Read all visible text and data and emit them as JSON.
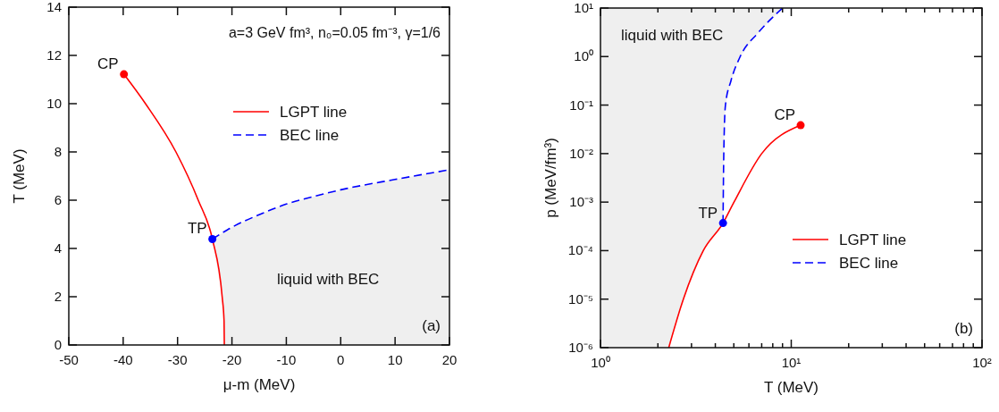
{
  "chart_data": [
    {
      "type": "line",
      "xlabel": "μ-m (MeV)",
      "ylabel": "T (MeV)",
      "xlim": [
        -50,
        20
      ],
      "ylim": [
        0,
        14
      ],
      "xticks": [
        -50,
        -40,
        -30,
        -20,
        -10,
        0,
        10,
        20
      ],
      "yticks": [
        0,
        2,
        4,
        6,
        8,
        10,
        12,
        14
      ],
      "grid": false,
      "legend": "top right",
      "series": [
        {
          "name": "LGPT line",
          "color": "#ff0000",
          "line_style": "solid",
          "marker": "none",
          "x": [
            -39.86,
            -35.9,
            -30.3,
            -26.2,
            -23.6,
            -21.8,
            -21.45,
            -21.4
          ],
          "values": [
            11.22,
            10,
            8,
            6,
            4.39,
            2,
            1,
            0
          ]
        },
        {
          "name": "BEC line",
          "color": "#0000ff",
          "line_style": "dashed",
          "marker": "none",
          "x": [
            -23.6,
            -20,
            -15,
            -10,
            -5,
            0,
            10,
            20
          ],
          "values": [
            4.39,
            4.88,
            5.4,
            5.84,
            6.15,
            6.43,
            6.86,
            7.26
          ]
        },
        {
          "type": "scatter",
          "marker": "circle",
          "x": [
            -39.86,
            -23.6
          ],
          "values": [
            11.22,
            4.39
          ],
          "colors": [
            "#ff0000",
            "#0000ff"
          ]
        }
      ],
      "annotations": [
        "a=3 GeV fm³, n₀=0.05 fm⁻³, γ=1/6",
        {
          "text": "CP",
          "x": -39.86,
          "y": 11.22
        },
        {
          "text": "TP",
          "x": -23.6,
          "y": 4.39
        },
        "liquid with BEC",
        "(a)"
      ]
    },
    {
      "type": "line",
      "xlabel": "T (MeV)",
      "ylabel": "p (MeV/fm³)",
      "log": "xy",
      "xlim": [
        1,
        100
      ],
      "ylim": [
        1e-06,
        10
      ],
      "xticks": [
        {
          "value": 1,
          "label": "10⁰"
        },
        {
          "value": 2,
          "label": null
        },
        {
          "value": 3,
          "label": null
        },
        {
          "value": 4,
          "label": null
        },
        {
          "value": 5,
          "label": null
        },
        {
          "value": 6,
          "label": null
        },
        {
          "value": 7,
          "label": null
        },
        {
          "value": 8,
          "label": null
        },
        {
          "value": 9,
          "label": null
        },
        {
          "value": 10,
          "label": "10¹"
        },
        {
          "value": 20,
          "label": null
        },
        {
          "value": 30,
          "label": null
        },
        {
          "value": 40,
          "label": null
        },
        {
          "value": 50,
          "label": null
        },
        {
          "value": 60,
          "label": null
        },
        {
          "value": 70,
          "label": null
        },
        {
          "value": 80,
          "label": null
        },
        {
          "value": 90,
          "label": null
        },
        {
          "value": 100,
          "label": "10²"
        }
      ],
      "yticks": [
        {
          "value": 1e-06,
          "label": "10⁻⁶"
        },
        {
          "value": 1e-05,
          "label": "10⁻⁵"
        },
        {
          "value": 0.0001,
          "label": "10⁻⁴"
        },
        {
          "value": 0.001,
          "label": "10⁻³"
        },
        {
          "value": 0.01,
          "label": "10⁻²"
        },
        {
          "value": 0.1,
          "label": "10⁻¹"
        },
        {
          "value": 1,
          "label": "10⁰"
        },
        {
          "value": 10,
          "label": "10¹"
        }
      ],
      "grid": false,
      "legend": "bottom right",
      "series": [
        {
          "name": "LGPT line",
          "color": "#ff0000",
          "line_style": "solid",
          "marker": "none",
          "x": [
            2.28,
            2.72,
            3.46,
            4.39,
            5.01,
            7.0,
            11.2
          ],
          "values": [
            1e-06,
            1e-05,
            0.0001,
            0.00037,
            0.001,
            0.01,
            0.0385
          ]
        },
        {
          "name": "BEC line",
          "color": "#0000ff",
          "line_style": "dashed",
          "marker": "none",
          "x": [
            4.39,
            4.43,
            4.52,
            4.83,
            5.4,
            6.74,
            9.0
          ],
          "values": [
            0.00037,
            0.01,
            0.1,
            0.316,
            1,
            3.16,
            10
          ]
        },
        {
          "type": "scatter",
          "marker": "circle",
          "x": [
            11.2,
            4.39
          ],
          "values": [
            0.0385,
            0.00037
          ],
          "colors": [
            "#ff0000",
            "#0000ff"
          ]
        }
      ],
      "annotations": [
        {
          "text": "CP",
          "x": 11.2,
          "y": 0.0385
        },
        {
          "text": "TP",
          "x": 4.39,
          "y": 0.00037
        },
        "liquid with BEC",
        "(b)"
      ]
    }
  ]
}
